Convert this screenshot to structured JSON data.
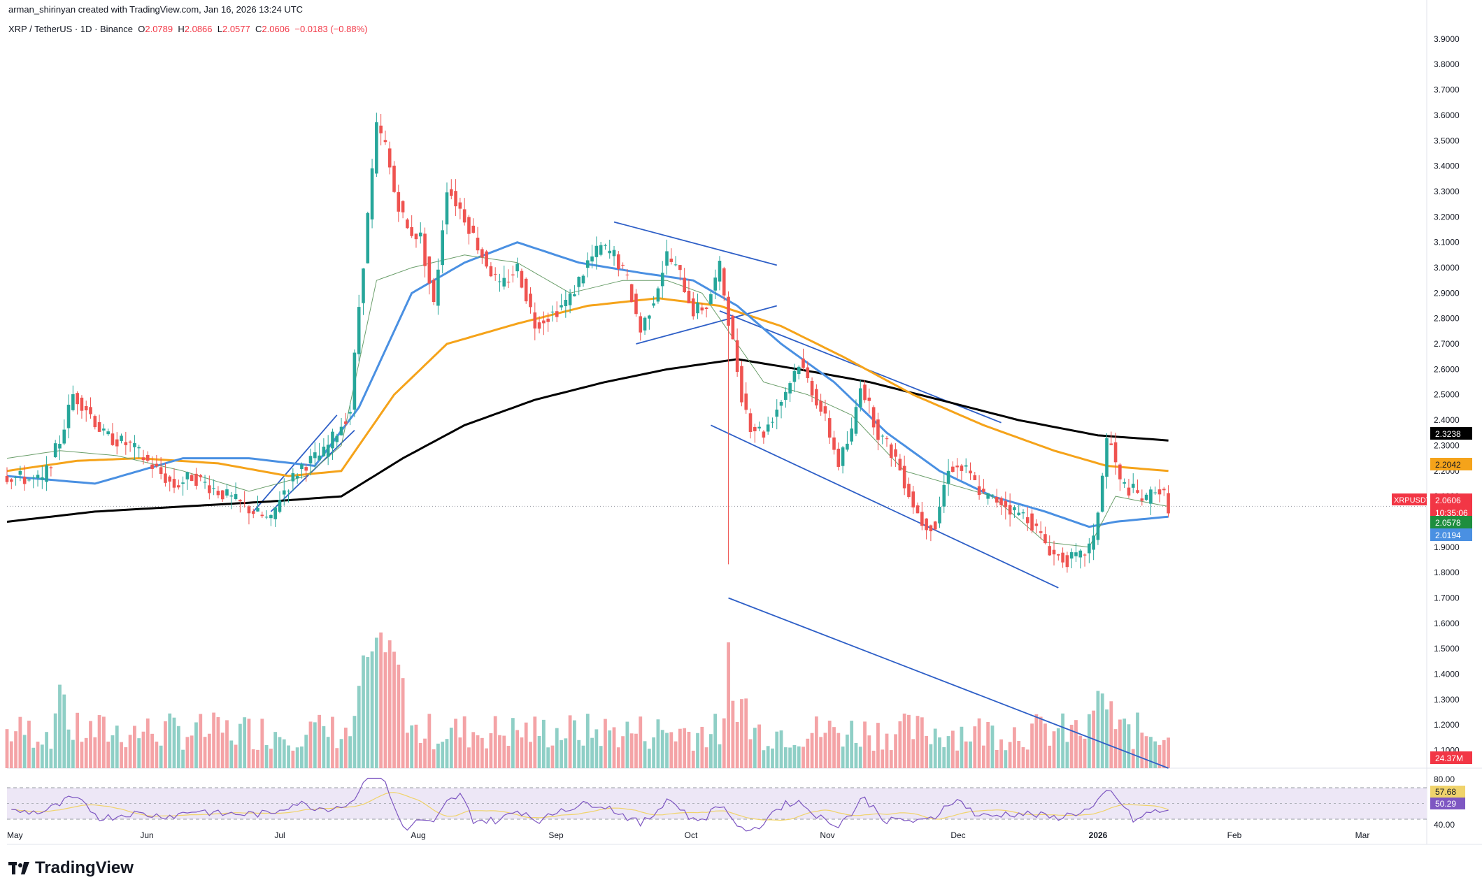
{
  "header": {
    "credit": "arman_shirinyan created with TradingView.com, Jan 16, 2026 13:24 UTC",
    "symbol": "XRP / TetherUS · 1D · Binance",
    "o_label": "O",
    "o": "2.0789",
    "h_label": "H",
    "h": "2.0866",
    "l_label": "L",
    "l": "2.0577",
    "c_label": "C",
    "c": "2.0606",
    "change": "−0.0183 (−0.88%)"
  },
  "brand": {
    "name": "TradingView",
    "icon": "tradingview-logo-icon"
  },
  "colors": {
    "up": "#26a69a",
    "down": "#ef5350",
    "vol_up": "#8fcfc6",
    "vol_down": "#f4a3a6",
    "ma_short": "#6a9e6a",
    "ma_mid": "#4a90e2",
    "ma_long": "#f5a31a",
    "ma_200": "#000000",
    "trendline": "#2e5fc7",
    "rsi": "#7e57c2",
    "rsi_ma": "#f0d36b"
  },
  "chart_data": {
    "type": "candlestick",
    "price_axis": [
      "3.9000",
      "3.8000",
      "3.7000",
      "3.6000",
      "3.5000",
      "3.4000",
      "3.3000",
      "3.2000",
      "3.1000",
      "3.0000",
      "2.9000",
      "2.8000",
      "2.7000",
      "2.6000",
      "2.5000",
      "2.4000",
      "2.3000",
      "2.2000",
      "2.1000",
      "2.0000",
      "1.9000",
      "1.8000",
      "1.7000",
      "1.6000",
      "1.5000",
      "1.4000",
      "1.3000",
      "1.2000",
      "1.1000"
    ],
    "ylim": [
      1.03,
      3.93
    ],
    "time_axis": [
      "May",
      "Jun",
      "Jul",
      "Aug",
      "Sep",
      "Oct",
      "Nov",
      "Dec",
      "2026",
      "Feb",
      "Mar"
    ],
    "rsi_axis": [
      "80.00",
      "40.00"
    ],
    "price_labels": [
      {
        "name": "ma-200",
        "text": "2.3238",
        "value": 2.3238,
        "color": "#000000"
      },
      {
        "name": "ma-100",
        "text": "2.2042",
        "value": 2.2042,
        "color": "#f5a31a"
      },
      {
        "name": "symbol",
        "text": "XRPUSDT",
        "value": 2.0606,
        "color": "#f23645"
      },
      {
        "name": "last-price",
        "text": "2.0606",
        "value": 2.0606,
        "color": "#f23645"
      },
      {
        "name": "countdown",
        "text": "10:35:06",
        "value": 2.0606,
        "color": "#f23645"
      },
      {
        "name": "ma-20",
        "text": "2.0578",
        "value": 2.0578,
        "color": "#1e8e3e"
      },
      {
        "name": "ma-50",
        "text": "2.0194",
        "value": 2.0194,
        "color": "#4a90e2"
      }
    ],
    "volume_label": "24.37M",
    "rsi_labels": [
      {
        "text": "57.68",
        "value": 57.68,
        "color": "#f0d36b"
      },
      {
        "text": "50.29",
        "value": 50.29,
        "color": "#7e57c2"
      }
    ],
    "price_path": [
      [
        0,
        2.18
      ],
      [
        8,
        2.16
      ],
      [
        12,
        2.32
      ],
      [
        15,
        2.5
      ],
      [
        18,
        2.45
      ],
      [
        22,
        2.34
      ],
      [
        28,
        2.3
      ],
      [
        33,
        2.22
      ],
      [
        38,
        2.14
      ],
      [
        42,
        2.18
      ],
      [
        47,
        2.13
      ],
      [
        52,
        2.08
      ],
      [
        56,
        2.04
      ],
      [
        60,
        2.0
      ],
      [
        62,
        2.1
      ],
      [
        67,
        2.22
      ],
      [
        72,
        2.27
      ],
      [
        78,
        2.44
      ],
      [
        80,
        2.85
      ],
      [
        84,
        3.55
      ],
      [
        86,
        3.48
      ],
      [
        88,
        3.3
      ],
      [
        91,
        3.15
      ],
      [
        94,
        3.12
      ],
      [
        97,
        2.85
      ],
      [
        100,
        3.32
      ],
      [
        104,
        3.2
      ],
      [
        108,
        3.05
      ],
      [
        112,
        2.92
      ],
      [
        116,
        3.0
      ],
      [
        120,
        2.78
      ],
      [
        124,
        2.82
      ],
      [
        128,
        2.88
      ],
      [
        132,
        3.02
      ],
      [
        135,
        3.08
      ],
      [
        138,
        3.05
      ],
      [
        141,
        2.95
      ],
      [
        144,
        2.75
      ],
      [
        147,
        2.88
      ],
      [
        150,
        3.05
      ],
      [
        153,
        2.97
      ],
      [
        156,
        2.83
      ],
      [
        159,
        2.85
      ],
      [
        162,
        3.0
      ],
      [
        164,
        2.8
      ],
      [
        167,
        2.5
      ],
      [
        169,
        2.38
      ],
      [
        172,
        2.35
      ],
      [
        176,
        2.48
      ],
      [
        180,
        2.63
      ],
      [
        183,
        2.52
      ],
      [
        186,
        2.4
      ],
      [
        189,
        2.23
      ],
      [
        192,
        2.35
      ],
      [
        194,
        2.55
      ],
      [
        198,
        2.35
      ],
      [
        202,
        2.25
      ],
      [
        206,
        2.07
      ],
      [
        208,
        2.0
      ],
      [
        211,
        1.98
      ],
      [
        214,
        2.22
      ],
      [
        218,
        2.2
      ],
      [
        222,
        2.1
      ],
      [
        226,
        2.08
      ],
      [
        229,
        2.04
      ],
      [
        232,
        2.02
      ],
      [
        235,
        1.94
      ],
      [
        238,
        1.87
      ],
      [
        241,
        1.85
      ],
      [
        244,
        1.86
      ],
      [
        247,
        1.92
      ],
      [
        248,
        2.05
      ],
      [
        250,
        2.32
      ],
      [
        251,
        2.3
      ],
      [
        253,
        2.15
      ],
      [
        256,
        2.12
      ],
      [
        259,
        2.08
      ],
      [
        261,
        2.14
      ],
      [
        263,
        2.1
      ],
      [
        264,
        2.06
      ]
    ],
    "ma_20": [
      [
        0,
        2.25
      ],
      [
        12,
        2.28
      ],
      [
        25,
        2.26
      ],
      [
        40,
        2.2
      ],
      [
        55,
        2.12
      ],
      [
        68,
        2.18
      ],
      [
        76,
        2.3
      ],
      [
        84,
        2.95
      ],
      [
        92,
        3.0
      ],
      [
        104,
        3.05
      ],
      [
        116,
        3.02
      ],
      [
        128,
        2.9
      ],
      [
        140,
        2.95
      ],
      [
        150,
        2.95
      ],
      [
        158,
        2.9
      ],
      [
        164,
        2.75
      ],
      [
        172,
        2.55
      ],
      [
        182,
        2.5
      ],
      [
        192,
        2.42
      ],
      [
        204,
        2.2
      ],
      [
        214,
        2.15
      ],
      [
        224,
        2.1
      ],
      [
        236,
        1.92
      ],
      [
        246,
        1.9
      ],
      [
        252,
        2.1
      ],
      [
        264,
        2.06
      ]
    ],
    "ma_50": [
      [
        0,
        2.18
      ],
      [
        20,
        2.15
      ],
      [
        40,
        2.25
      ],
      [
        55,
        2.25
      ],
      [
        70,
        2.22
      ],
      [
        80,
        2.45
      ],
      [
        92,
        2.9
      ],
      [
        104,
        3.02
      ],
      [
        116,
        3.1
      ],
      [
        130,
        3.02
      ],
      [
        144,
        2.98
      ],
      [
        156,
        2.95
      ],
      [
        166,
        2.85
      ],
      [
        176,
        2.7
      ],
      [
        188,
        2.55
      ],
      [
        200,
        2.35
      ],
      [
        212,
        2.2
      ],
      [
        224,
        2.1
      ],
      [
        236,
        2.04
      ],
      [
        246,
        1.98
      ],
      [
        252,
        2.0
      ],
      [
        264,
        2.02
      ]
    ],
    "ma_100": [
      [
        0,
        2.2
      ],
      [
        16,
        2.24
      ],
      [
        30,
        2.25
      ],
      [
        48,
        2.23
      ],
      [
        64,
        2.18
      ],
      [
        76,
        2.2
      ],
      [
        88,
        2.5
      ],
      [
        100,
        2.7
      ],
      [
        116,
        2.78
      ],
      [
        132,
        2.85
      ],
      [
        148,
        2.88
      ],
      [
        162,
        2.85
      ],
      [
        176,
        2.77
      ],
      [
        190,
        2.65
      ],
      [
        206,
        2.5
      ],
      [
        222,
        2.38
      ],
      [
        238,
        2.28
      ],
      [
        250,
        2.22
      ],
      [
        264,
        2.2
      ]
    ],
    "ma_200": [
      [
        0,
        2.0
      ],
      [
        20,
        2.04
      ],
      [
        40,
        2.06
      ],
      [
        60,
        2.08
      ],
      [
        76,
        2.1
      ],
      [
        90,
        2.25
      ],
      [
        104,
        2.38
      ],
      [
        120,
        2.48
      ],
      [
        136,
        2.55
      ],
      [
        150,
        2.6
      ],
      [
        166,
        2.64
      ],
      [
        180,
        2.6
      ],
      [
        196,
        2.55
      ],
      [
        212,
        2.48
      ],
      [
        230,
        2.4
      ],
      [
        248,
        2.34
      ],
      [
        264,
        2.32
      ]
    ],
    "trendlines": [
      {
        "x1": 56,
        "y1": 2.04,
        "x2": 75,
        "y2": 2.42
      },
      {
        "x1": 60,
        "y1": 2.04,
        "x2": 79,
        "y2": 2.36
      },
      {
        "x1": 138,
        "y1": 3.18,
        "x2": 175,
        "y2": 3.01
      },
      {
        "x1": 143,
        "y1": 2.7,
        "x2": 175,
        "y2": 2.85
      },
      {
        "x1": 162,
        "y1": 2.83,
        "x2": 226,
        "y2": 2.39
      },
      {
        "x1": 160,
        "y1": 2.38,
        "x2": 239,
        "y2": 1.74
      },
      {
        "x1": 164,
        "y1": 1.7,
        "x2": 264,
        "y2": 1.03
      }
    ]
  }
}
